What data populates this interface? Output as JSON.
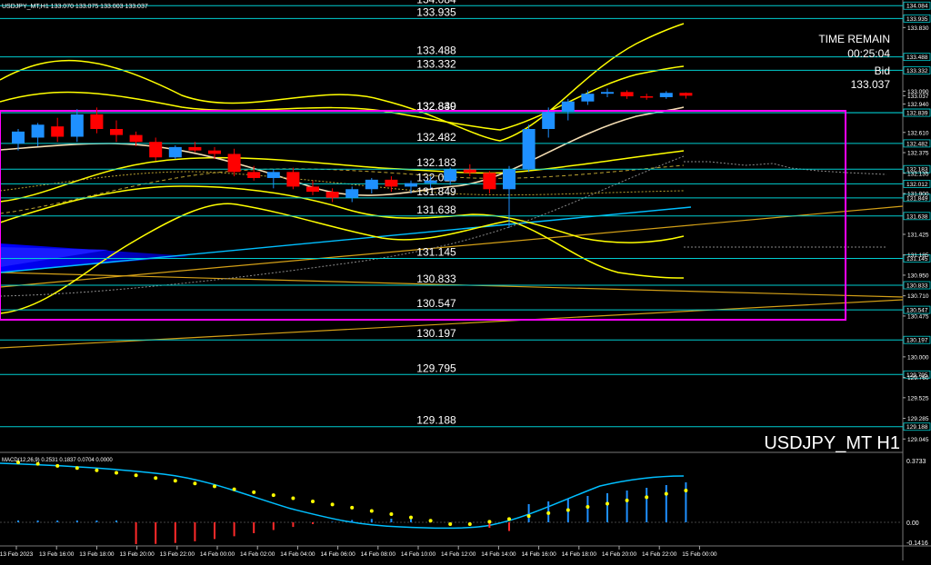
{
  "header": {
    "info": "USDJPY_MT,H1  133.070 133.075 133.003 133.037"
  },
  "overlay": {
    "time_remain_label": "TIME REMAIN",
    "time_remain_value": "00:25:04",
    "bid_label": "Bid",
    "bid_value": "133.037"
  },
  "symbol_watermark": "USDJPY_MT H1",
  "macd": {
    "label": "MACD(12,26,9) 0.2531 0.1837 0.0704 0.0000",
    "scale": [
      "0.3733",
      "0.00",
      "-0.1416"
    ]
  },
  "colors": {
    "background": "#000000",
    "bull_candle": "#1e90ff",
    "bear_candle": "#ff0000",
    "level_line": "#00ced1",
    "bands": "#ffff00",
    "box": "#ff00ff",
    "cloud": "#0000ff",
    "macd_line": "#00bfff",
    "macd_signal": "#ffff00"
  },
  "chart_data": {
    "type": "candlestick",
    "symbol": "USDJPY_MT",
    "timeframe": "H1",
    "ylim": [
      128.9,
      134.15
    ],
    "levels": [
      134.084,
      133.935,
      133.488,
      133.332,
      132.84,
      132.839,
      132.482,
      132.183,
      132.012,
      131.849,
      131.638,
      131.145,
      130.833,
      130.547,
      130.197,
      129.795,
      129.188
    ],
    "axis_ticks": [
      "134.084",
      "133.935",
      "133.830",
      "133.488",
      "133.332",
      "133.090",
      "133.037",
      "132.940",
      "132.839",
      "132.610",
      "132.482",
      "132.375",
      "132.183",
      "132.135",
      "132.012",
      "131.900",
      "131.849",
      "131.638",
      "131.425",
      "131.185",
      "131.145",
      "130.950",
      "130.833",
      "130.710",
      "130.547",
      "130.475",
      "130.197",
      "130.000",
      "129.795",
      "129.760",
      "129.525",
      "129.285",
      "129.188",
      "129.045"
    ],
    "x_labels": [
      "13 Feb 2023",
      "13 Feb 16:00",
      "13 Feb 18:00",
      "13 Feb 20:00",
      "13 Feb 22:00",
      "14 Feb 00:00",
      "14 Feb 02:00",
      "14 Feb 04:00",
      "14 Feb 06:00",
      "14 Feb 08:00",
      "14 Feb 10:00",
      "14 Feb 12:00",
      "14 Feb 14:00",
      "14 Feb 16:00",
      "14 Feb 18:00",
      "14 Feb 20:00",
      "14 Feb 22:00",
      "15 Feb 00:00"
    ],
    "candles": [
      {
        "o": 132.48,
        "h": 132.65,
        "l": 132.4,
        "c": 132.62
      },
      {
        "o": 132.55,
        "h": 132.72,
        "l": 132.45,
        "c": 132.7
      },
      {
        "o": 132.68,
        "h": 132.78,
        "l": 132.5,
        "c": 132.56
      },
      {
        "o": 132.56,
        "h": 132.88,
        "l": 132.5,
        "c": 132.82
      },
      {
        "o": 132.82,
        "h": 132.9,
        "l": 132.6,
        "c": 132.65
      },
      {
        "o": 132.65,
        "h": 132.75,
        "l": 132.5,
        "c": 132.58
      },
      {
        "o": 132.58,
        "h": 132.62,
        "l": 132.45,
        "c": 132.5
      },
      {
        "o": 132.5,
        "h": 132.55,
        "l": 132.28,
        "c": 132.32
      },
      {
        "o": 132.32,
        "h": 132.46,
        "l": 132.3,
        "c": 132.44
      },
      {
        "o": 132.44,
        "h": 132.5,
        "l": 132.38,
        "c": 132.4
      },
      {
        "o": 132.4,
        "h": 132.44,
        "l": 132.3,
        "c": 132.36
      },
      {
        "o": 132.36,
        "h": 132.42,
        "l": 132.1,
        "c": 132.15
      },
      {
        "o": 132.15,
        "h": 132.22,
        "l": 132.05,
        "c": 132.08
      },
      {
        "o": 132.08,
        "h": 132.18,
        "l": 131.96,
        "c": 132.15
      },
      {
        "o": 132.15,
        "h": 132.2,
        "l": 131.95,
        "c": 131.98
      },
      {
        "o": 131.98,
        "h": 132.05,
        "l": 131.88,
        "c": 131.92
      },
      {
        "o": 131.92,
        "h": 131.96,
        "l": 131.8,
        "c": 131.85
      },
      {
        "o": 131.85,
        "h": 131.98,
        "l": 131.8,
        "c": 131.95
      },
      {
        "o": 131.95,
        "h": 132.08,
        "l": 131.9,
        "c": 132.06
      },
      {
        "o": 132.06,
        "h": 132.1,
        "l": 131.92,
        "c": 131.98
      },
      {
        "o": 131.98,
        "h": 132.05,
        "l": 131.9,
        "c": 132.02
      },
      {
        "o": 132.02,
        "h": 132.1,
        "l": 131.96,
        "c": 132.05
      },
      {
        "o": 132.05,
        "h": 132.2,
        "l": 132.0,
        "c": 132.18
      },
      {
        "o": 132.18,
        "h": 132.24,
        "l": 132.1,
        "c": 132.14
      },
      {
        "o": 132.14,
        "h": 132.16,
        "l": 131.9,
        "c": 131.95
      },
      {
        "o": 131.95,
        "h": 132.22,
        "l": 131.5,
        "c": 132.18
      },
      {
        "o": 132.18,
        "h": 132.7,
        "l": 132.15,
        "c": 132.65
      },
      {
        "o": 132.65,
        "h": 132.9,
        "l": 132.55,
        "c": 132.85
      },
      {
        "o": 132.85,
        "h": 133.0,
        "l": 132.75,
        "c": 132.97
      },
      {
        "o": 132.97,
        "h": 133.1,
        "l": 132.93,
        "c": 133.06
      },
      {
        "o": 133.06,
        "h": 133.12,
        "l": 133.02,
        "c": 133.08
      },
      {
        "o": 133.08,
        "h": 133.1,
        "l": 133.0,
        "c": 133.03
      },
      {
        "o": 133.03,
        "h": 133.06,
        "l": 132.99,
        "c": 133.02
      },
      {
        "o": 133.02,
        "h": 133.09,
        "l": 133.0,
        "c": 133.07
      },
      {
        "o": 133.07,
        "h": 133.075,
        "l": 133.003,
        "c": 133.037
      }
    ]
  }
}
